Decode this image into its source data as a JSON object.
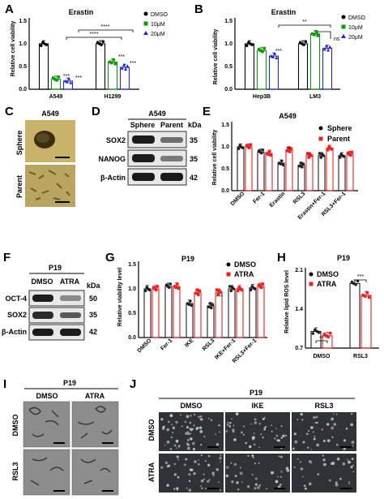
{
  "colors": {
    "black": "#000000",
    "green": "#0a9a0a",
    "blue": "#2323d8",
    "red": "#ee2020",
    "dark": "#202020",
    "sphere_bg": "#c9b36a",
    "parent_bg": "#b9a460",
    "em_bg": "#8d8d8d",
    "cell_bg": "#2f3236"
  },
  "panels": {
    "A": {
      "label": "A",
      "title": "Erastin",
      "ylabel": "Relative cell viability",
      "yticks": [
        "0.0",
        "0.5",
        "1.0",
        "1.5"
      ],
      "legend": [
        "DMSO",
        "10μM",
        "20μM"
      ],
      "sig": [
        "***",
        "***",
        "***",
        "***",
        "****",
        "****"
      ]
    },
    "B": {
      "label": "B",
      "title": "Erastin",
      "ylabel": "Relative cell viability",
      "yticks": [
        "0.0",
        "0.5",
        "1.0",
        "1.5"
      ],
      "legend": [
        "DMSO",
        "10μM",
        "20μM"
      ],
      "sig": [
        "***",
        "ns",
        "**"
      ]
    },
    "C": {
      "label": "C",
      "title": "A549",
      "rows": [
        "Sphere",
        "Parent"
      ]
    },
    "D": {
      "label": "D",
      "title": "A549",
      "cols": [
        "Sphere",
        "Parent"
      ],
      "unit": "kDa",
      "rows": [
        "SOX2",
        "NANOG",
        "β-Actin"
      ],
      "kda": [
        "35",
        "35",
        "42"
      ]
    },
    "E": {
      "label": "E",
      "title": "A549",
      "ylabel": "Relative cell viability",
      "yticks": [
        "0.0",
        "0.5",
        "1.0",
        "1.5"
      ],
      "legend": [
        "Sphere",
        "Parent"
      ],
      "sig": [
        "**",
        "*"
      ]
    },
    "F": {
      "label": "F",
      "title": "P19",
      "cols": [
        "DMSO",
        "ATRA"
      ],
      "unit": "kDa",
      "rows": [
        "OCT-4",
        "SOX2",
        "β-Actin"
      ],
      "kda": [
        "50",
        "35",
        "42"
      ]
    },
    "G": {
      "label": "G",
      "title": "P19",
      "ylabel": "Relative viability level",
      "yticks": [
        "0.0",
        "0.5",
        "1.0",
        "1.5"
      ],
      "legend": [
        "DMSO",
        "ATRA"
      ],
      "sig": [
        "*",
        "***"
      ]
    },
    "H": {
      "label": "H",
      "title": "P19",
      "ylabel": "Relative lipid ROS level",
      "yticks": [
        "0.7",
        "1.4",
        "2.1"
      ],
      "legend": [
        "DMSO",
        "ATRA"
      ],
      "sig": [
        "**",
        "***"
      ]
    },
    "I": {
      "label": "I",
      "title": "P19",
      "cols": [
        "DMSO",
        "ATRA"
      ],
      "rows": [
        "DMSO",
        "RSL3"
      ]
    },
    "J": {
      "label": "J",
      "title": "P19",
      "cols": [
        "DMSO",
        "IKE",
        "RSL3"
      ],
      "rows": [
        "DMSO",
        "ATRA"
      ]
    }
  },
  "chart_data": [
    {
      "panel": "A",
      "type": "bar",
      "title": "Erastin",
      "xlabel": "",
      "ylabel": "Relative cell viability",
      "ylim": [
        0,
        1.5
      ],
      "categories": [
        "A549",
        "H1299"
      ],
      "series": [
        {
          "name": "DMSO",
          "values": [
            1.0,
            1.0
          ]
        },
        {
          "name": "10μM",
          "values": [
            0.22,
            0.6
          ]
        },
        {
          "name": "20μM",
          "values": [
            0.18,
            0.48
          ]
        }
      ]
    },
    {
      "panel": "B",
      "type": "bar",
      "title": "Erastin",
      "xlabel": "",
      "ylabel": "Relative cell viability",
      "ylim": [
        0,
        1.5
      ],
      "categories": [
        "Hep3B",
        "LM3"
      ],
      "series": [
        {
          "name": "DMSO",
          "values": [
            1.0,
            1.0
          ]
        },
        {
          "name": "10μM",
          "values": [
            0.85,
            1.22
          ]
        },
        {
          "name": "20μM",
          "values": [
            0.73,
            0.9
          ]
        }
      ]
    },
    {
      "panel": "E",
      "type": "bar",
      "title": "A549",
      "xlabel": "",
      "ylabel": "Relative cell viability",
      "ylim": [
        0,
        1.5
      ],
      "categories": [
        "DMSO",
        "Fer-1",
        "Erastin",
        "RSL3",
        "Erastin+Fer-1",
        "RSL3+Fer-1"
      ],
      "series": [
        {
          "name": "Sphere",
          "values": [
            1.0,
            0.88,
            0.63,
            0.58,
            0.8,
            0.8
          ]
        },
        {
          "name": "Parent",
          "values": [
            1.0,
            0.85,
            0.93,
            0.8,
            0.97,
            0.83
          ]
        }
      ]
    },
    {
      "panel": "G",
      "type": "bar",
      "title": "P19",
      "xlabel": "",
      "ylabel": "Relative viability level",
      "ylim": [
        0,
        1.5
      ],
      "categories": [
        "DMSO",
        "Fer-1",
        "IKE",
        "RSL3",
        "IKE+Fer-1",
        "RSL3+Fer-1"
      ],
      "series": [
        {
          "name": "DMSO",
          "values": [
            1.0,
            1.05,
            0.7,
            0.65,
            1.0,
            1.02
          ]
        },
        {
          "name": "ATRA",
          "values": [
            1.0,
            1.05,
            0.93,
            0.93,
            1.0,
            1.05
          ]
        }
      ]
    },
    {
      "panel": "H",
      "type": "bar",
      "title": "P19",
      "xlabel": "",
      "ylabel": "Relative lipid ROS level",
      "ylim": [
        0.7,
        2.1
      ],
      "categories": [
        "DMSO",
        "RSL3"
      ],
      "series": [
        {
          "name": "DMSO",
          "values": [
            1.0,
            1.86
          ]
        },
        {
          "name": "ATRA",
          "values": [
            0.92,
            1.65
          ]
        }
      ]
    }
  ]
}
